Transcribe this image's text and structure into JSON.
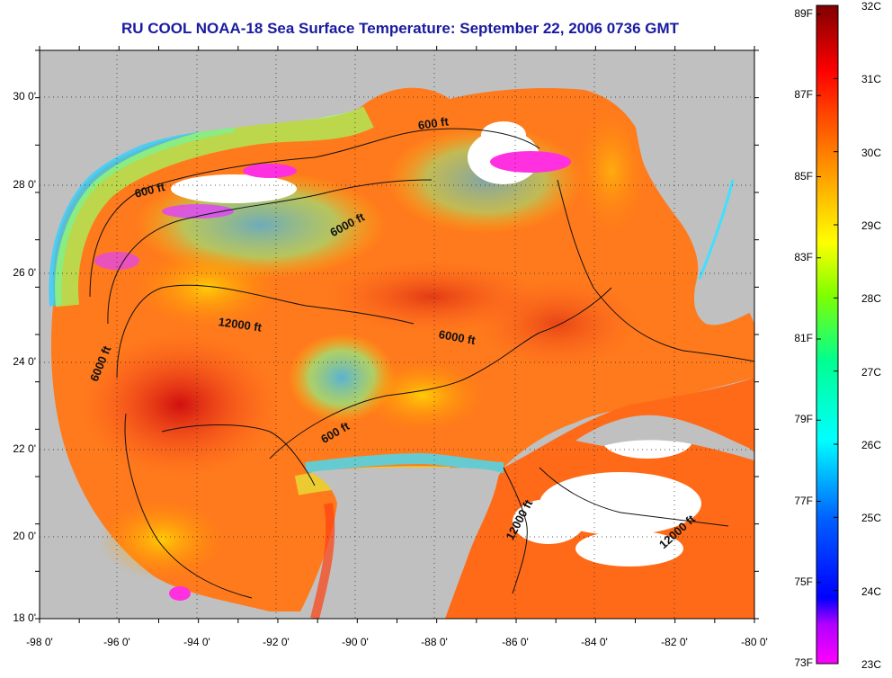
{
  "title": "RU COOL  NOAA-18  Sea Surface Temperature:  September 22, 2006 0736 GMT",
  "axes": {
    "lat_ticks": [
      "30 0'",
      "28 0'",
      "26 0'",
      "24 0'",
      "22 0'",
      "20 0'",
      "18 0'"
    ],
    "lon_ticks": [
      "-98 0'",
      "-96 0'",
      "-94 0'",
      "-92 0'",
      "-90 0'",
      "-88 0'",
      "-86 0'",
      "-84 0'",
      "-82 0'",
      "-80 0'"
    ]
  },
  "colorbar": {
    "fahrenheit": [
      "89F",
      "87F",
      "85F",
      "83F",
      "81F",
      "79F",
      "77F",
      "75F",
      "73F"
    ],
    "celsius": [
      "32C",
      "31C",
      "30C",
      "29C",
      "28C",
      "27C",
      "26C",
      "25C",
      "24C",
      "23C"
    ],
    "colors": [
      "#ff00ff",
      "#8000ff",
      "#0000ff",
      "#0080ff",
      "#00ffff",
      "#00ff80",
      "#80ff00",
      "#ffff00",
      "#ffbf00",
      "#ff8000",
      "#ff4000",
      "#ff0000",
      "#c00000",
      "#800000"
    ]
  },
  "contours": [
    {
      "label": "600 ft"
    },
    {
      "label": "600 ft"
    },
    {
      "label": "6000 ft"
    },
    {
      "label": "12000 ft"
    },
    {
      "label": "6000 ft"
    },
    {
      "label": "6000 ft"
    },
    {
      "label": "600 ft"
    },
    {
      "label": "12000 ft"
    },
    {
      "label": "12000 ft"
    }
  ],
  "colors": {
    "land": "#c0c0c0",
    "title": "#1a1aa0",
    "warm": "#ff6020",
    "cool": "#40d0ff"
  }
}
